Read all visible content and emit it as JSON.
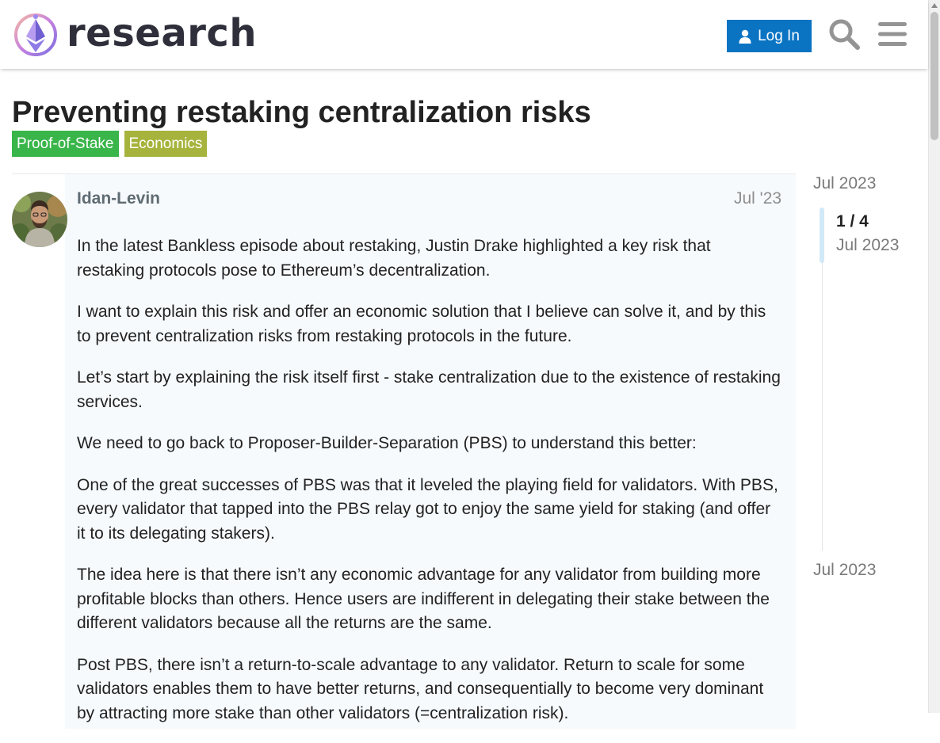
{
  "header": {
    "logo_text": "research",
    "login_label": "Log In"
  },
  "topic": {
    "title": "Preventing restaking centralization risks",
    "tags": [
      {
        "label": "Proof-of-Stake",
        "color": "#3ab54a"
      },
      {
        "label": "Economics",
        "color": "#a6b33c"
      }
    ]
  },
  "post": {
    "author": "Idan-Levin",
    "date": "Jul '23",
    "paragraphs": [
      "In the latest Bankless episode about restaking, Justin Drake highlighted a key risk that restaking protocols pose to Ethereum’s decentralization.",
      "I want to explain this risk and offer an economic solution that I believe can solve it, and by this to prevent centralization risks from restaking protocols in the future.",
      "Let’s start by explaining the risk itself first - stake centralization due to the existence of restaking services.",
      "We need to go back to Proposer-Builder-Separation (PBS) to understand this better:",
      "One of the great successes of PBS was that it leveled the playing field for validators. With PBS, every validator that tapped into the PBS relay got to enjoy the same yield for staking (and offer it to its delegating stakers).",
      "The idea here is that there isn’t any economic advantage for any validator from building more profitable blocks than others. Hence users are indifferent in delegating their stake between the different validators because all the returns are the same.",
      "Post PBS, there isn’t a return-to-scale advantage to any validator. Return to scale for some validators enables them to have better returns, and consequentially to become very dominant by attracting more stake than other validators (=centralization risk)."
    ]
  },
  "timeline": {
    "top_date": "Jul 2023",
    "position": "1 / 4",
    "current_date": "Jul 2023",
    "bottom_date": "Jul 2023"
  },
  "colors": {
    "accent": "#0a74c3",
    "post_background": "#f7fafd"
  }
}
